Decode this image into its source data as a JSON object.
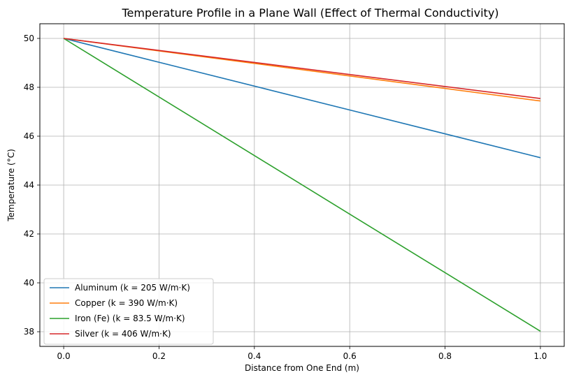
{
  "chart_data": {
    "type": "line",
    "title": "Temperature Profile in a Plane Wall (Effect of Thermal Conductivity)",
    "xlabel": "Distance from One End (m)",
    "ylabel": "Temperature (°C)",
    "xlim": [
      -0.05,
      1.05
    ],
    "ylim": [
      37.4,
      50.6
    ],
    "xticks": [
      0.0,
      0.2,
      0.4,
      0.6,
      0.8,
      1.0
    ],
    "xtick_labels": [
      "0.0",
      "0.2",
      "0.4",
      "0.6",
      "0.8",
      "1.0"
    ],
    "yticks": [
      38,
      40,
      42,
      44,
      46,
      48,
      50
    ],
    "ytick_labels": [
      "38",
      "40",
      "42",
      "44",
      "46",
      "48",
      "50"
    ],
    "grid": true,
    "legend_position": "lower-left",
    "series": [
      {
        "name": "Aluminum (k = 205 W/m·K)",
        "color": "#1f77b4",
        "x": [
          0.0,
          1.0
        ],
        "y": [
          50.0,
          45.12
        ]
      },
      {
        "name": "Copper (k = 390 W/m·K)",
        "color": "#ff7f0e",
        "x": [
          0.0,
          1.0
        ],
        "y": [
          50.0,
          47.44
        ]
      },
      {
        "name": "Iron (Fe) (k = 83.5 W/m·K)",
        "color": "#2ca02c",
        "x": [
          0.0,
          1.0
        ],
        "y": [
          50.0,
          38.02
        ]
      },
      {
        "name": "Silver (k = 406 W/m·K)",
        "color": "#d62728",
        "x": [
          0.0,
          1.0
        ],
        "y": [
          50.0,
          47.54
        ]
      }
    ]
  }
}
